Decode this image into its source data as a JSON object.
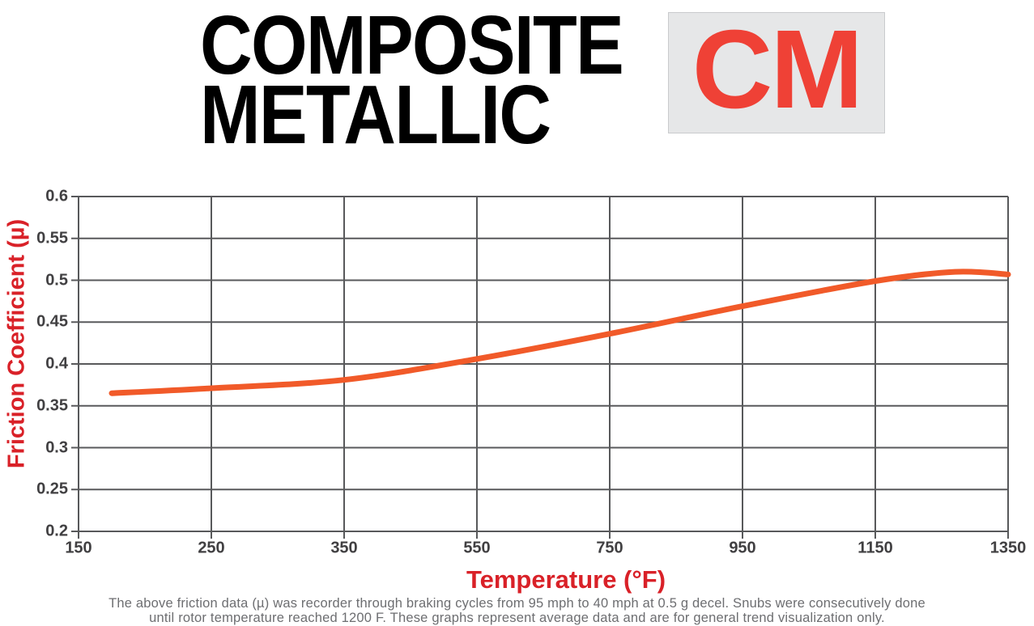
{
  "header": {
    "title_line1": "COMPOSITE",
    "title_line2": "METALLIC",
    "badge_label": "CM"
  },
  "chart_data": {
    "type": "line",
    "title": "Composite Metallic (CM) friction coefficient vs temperature",
    "xlabel": "Temperature (°F)",
    "ylabel": "Friction Coefficient (µ)",
    "x_tick_values": [
      150,
      250,
      350,
      550,
      750,
      950,
      1150,
      1350
    ],
    "x_tick_labels": [
      "150",
      "250",
      "350",
      "550",
      "750",
      "950",
      "1150",
      "1350"
    ],
    "y_tick_labels": [
      "0.6",
      "0.55",
      "0.5",
      "0.45",
      "0.4",
      "0.35",
      "0.3",
      "0.25",
      "0.2"
    ],
    "ylim": [
      0.2,
      0.6
    ],
    "y_tick_step": 0.05,
    "x_spacing": "categorical-even",
    "grid": true,
    "legend": "none",
    "series": [
      {
        "name": "CM friction coefficient (µ)",
        "color": "#F15A29",
        "x": [
          175,
          250,
          350,
          550,
          750,
          950,
          1150,
          1270,
          1350
        ],
        "y": [
          0.365,
          0.371,
          0.381,
          0.406,
          0.436,
          0.469,
          0.499,
          0.51,
          0.507
        ]
      }
    ]
  },
  "footnote": {
    "line1": "The above friction data (µ) was recorder through braking cycles from 95 mph to 40 mph at 0.5 g decel. Snubs were consecutively done",
    "line2": "until rotor temperature reached 1200 F. These graphs represent average data and are for general trend visualization only."
  },
  "colors": {
    "title_black": "#000000",
    "badge_red": "#EF4136",
    "badge_bg": "#E6E7E8",
    "axis_title_red": "#D92128",
    "grid_gray": "#58595B",
    "tick_label_gray": "#414042",
    "footnote_gray": "#6D6E71",
    "curve_orange": "#F15A29"
  }
}
